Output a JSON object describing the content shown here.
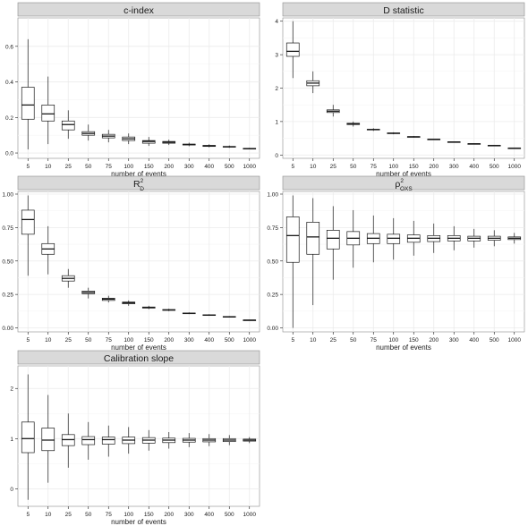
{
  "chart_data": [
    {
      "type": "boxplot",
      "title": "c-index",
      "xlabel": "number of events",
      "ylabel": "",
      "ylim": [
        -0.03,
        0.76
      ],
      "yticks": [
        "0.0",
        "0.2",
        "0.4",
        "0.6"
      ],
      "categories": [
        "5",
        "10",
        "25",
        "50",
        "75",
        "100",
        "150",
        "200",
        "300",
        "400",
        "500",
        "1000"
      ],
      "boxes": [
        {
          "min": 0.02,
          "q1": 0.19,
          "median": 0.27,
          "q3": 0.37,
          "max": 0.64
        },
        {
          "min": 0.05,
          "q1": 0.18,
          "median": 0.22,
          "q3": 0.27,
          "max": 0.43
        },
        {
          "min": 0.08,
          "q1": 0.13,
          "median": 0.16,
          "q3": 0.18,
          "max": 0.24
        },
        {
          "min": 0.07,
          "q1": 0.1,
          "median": 0.11,
          "q3": 0.12,
          "max": 0.16
        },
        {
          "min": 0.06,
          "q1": 0.085,
          "median": 0.095,
          "q3": 0.105,
          "max": 0.13
        },
        {
          "min": 0.05,
          "q1": 0.07,
          "median": 0.08,
          "q3": 0.09,
          "max": 0.11
        },
        {
          "min": 0.04,
          "q1": 0.055,
          "median": 0.065,
          "q3": 0.07,
          "max": 0.09
        },
        {
          "min": 0.045,
          "q1": 0.055,
          "median": 0.06,
          "q3": 0.065,
          "max": 0.075
        },
        {
          "min": 0.038,
          "q1": 0.045,
          "median": 0.048,
          "q3": 0.05,
          "max": 0.058
        },
        {
          "min": 0.032,
          "q1": 0.037,
          "median": 0.04,
          "q3": 0.043,
          "max": 0.049
        },
        {
          "min": 0.029,
          "q1": 0.033,
          "median": 0.035,
          "q3": 0.037,
          "max": 0.042
        },
        {
          "min": 0.021,
          "q1": 0.024,
          "median": 0.025,
          "q3": 0.026,
          "max": 0.029
        }
      ]
    },
    {
      "type": "boxplot",
      "title": "D statistic",
      "xlabel": "number of events",
      "ylabel": "",
      "ylim": [
        -0.1,
        4.1
      ],
      "yticks": [
        "0",
        "1",
        "2",
        "3",
        "4"
      ],
      "categories": [
        "5",
        "10",
        "25",
        "50",
        "75",
        "100",
        "150",
        "200",
        "300",
        "400",
        "500",
        "1000"
      ],
      "boxes": [
        {
          "min": 2.3,
          "q1": 2.95,
          "median": 3.1,
          "q3": 3.35,
          "max": 4.0
        },
        {
          "min": 1.85,
          "q1": 2.07,
          "median": 2.15,
          "q3": 2.22,
          "max": 2.5
        },
        {
          "min": 1.15,
          "q1": 1.27,
          "median": 1.31,
          "q3": 1.35,
          "max": 1.5
        },
        {
          "min": 0.85,
          "q1": 0.91,
          "median": 0.93,
          "q3": 0.95,
          "max": 1.0
        },
        {
          "min": 0.72,
          "q1": 0.75,
          "median": 0.76,
          "q3": 0.77,
          "max": 0.8
        },
        {
          "min": 0.62,
          "q1": 0.645,
          "median": 0.65,
          "q3": 0.66,
          "max": 0.68
        },
        {
          "min": 0.52,
          "q1": 0.54,
          "median": 0.545,
          "q3": 0.55,
          "max": 0.57
        },
        {
          "min": 0.45,
          "q1": 0.465,
          "median": 0.47,
          "q3": 0.475,
          "max": 0.49
        },
        {
          "min": 0.37,
          "q1": 0.385,
          "median": 0.39,
          "q3": 0.395,
          "max": 0.405
        },
        {
          "min": 0.32,
          "q1": 0.33,
          "median": 0.335,
          "q3": 0.34,
          "max": 0.35
        },
        {
          "min": 0.27,
          "q1": 0.28,
          "median": 0.285,
          "q3": 0.29,
          "max": 0.3
        },
        {
          "min": 0.19,
          "q1": 0.2,
          "median": 0.205,
          "q3": 0.21,
          "max": 0.22
        }
      ]
    },
    {
      "type": "boxplot",
      "title": "R",
      "title_sup": "2",
      "title_sub": "D",
      "xlabel": "number of events",
      "ylabel": "",
      "ylim": [
        -0.03,
        1.02
      ],
      "yticks": [
        "0.00",
        "0.25",
        "0.50",
        "0.75",
        "1.00"
      ],
      "categories": [
        "5",
        "10",
        "25",
        "50",
        "75",
        "100",
        "150",
        "200",
        "300",
        "400",
        "500",
        "1000"
      ],
      "boxes": [
        {
          "min": 0.39,
          "q1": 0.7,
          "median": 0.81,
          "q3": 0.88,
          "max": 0.99
        },
        {
          "min": 0.4,
          "q1": 0.55,
          "median": 0.59,
          "q3": 0.63,
          "max": 0.76
        },
        {
          "min": 0.3,
          "q1": 0.35,
          "median": 0.37,
          "q3": 0.39,
          "max": 0.44
        },
        {
          "min": 0.22,
          "q1": 0.255,
          "median": 0.265,
          "q3": 0.275,
          "max": 0.3
        },
        {
          "min": 0.19,
          "q1": 0.205,
          "median": 0.215,
          "q3": 0.222,
          "max": 0.24
        },
        {
          "min": 0.165,
          "q1": 0.18,
          "median": 0.187,
          "q3": 0.193,
          "max": 0.205
        },
        {
          "min": 0.14,
          "q1": 0.148,
          "median": 0.152,
          "q3": 0.156,
          "max": 0.165
        },
        {
          "min": 0.125,
          "q1": 0.131,
          "median": 0.134,
          "q3": 0.137,
          "max": 0.143
        },
        {
          "min": 0.103,
          "q1": 0.107,
          "median": 0.109,
          "q3": 0.111,
          "max": 0.116
        },
        {
          "min": 0.09,
          "q1": 0.094,
          "median": 0.096,
          "q3": 0.098,
          "max": 0.102
        },
        {
          "min": 0.078,
          "q1": 0.081,
          "median": 0.083,
          "q3": 0.085,
          "max": 0.088
        },
        {
          "min": 0.055,
          "q1": 0.057,
          "median": 0.058,
          "q3": 0.059,
          "max": 0.061
        }
      ]
    },
    {
      "type": "boxplot",
      "title": "ρ",
      "title_sup": "2",
      "title_sub": "OXS",
      "xlabel": "number of events",
      "ylabel": "",
      "ylim": [
        -0.03,
        1.02
      ],
      "yticks": [
        "0.00",
        "0.25",
        "0.50",
        "0.75",
        "1.00"
      ],
      "categories": [
        "5",
        "10",
        "25",
        "50",
        "75",
        "100",
        "150",
        "200",
        "300",
        "400",
        "500",
        "1000"
      ],
      "boxes": [
        {
          "min": 0.0,
          "q1": 0.49,
          "median": 0.69,
          "q3": 0.83,
          "max": 0.99
        },
        {
          "min": 0.17,
          "q1": 0.55,
          "median": 0.68,
          "q3": 0.79,
          "max": 0.97
        },
        {
          "min": 0.36,
          "q1": 0.59,
          "median": 0.67,
          "q3": 0.73,
          "max": 0.91
        },
        {
          "min": 0.45,
          "q1": 0.62,
          "median": 0.67,
          "q3": 0.72,
          "max": 0.88
        },
        {
          "min": 0.49,
          "q1": 0.63,
          "median": 0.67,
          "q3": 0.705,
          "max": 0.84
        },
        {
          "min": 0.51,
          "q1": 0.63,
          "median": 0.67,
          "q3": 0.7,
          "max": 0.82
        },
        {
          "min": 0.54,
          "q1": 0.64,
          "median": 0.67,
          "q3": 0.695,
          "max": 0.8
        },
        {
          "min": 0.56,
          "q1": 0.645,
          "median": 0.67,
          "q3": 0.69,
          "max": 0.78
        },
        {
          "min": 0.58,
          "q1": 0.65,
          "median": 0.67,
          "q3": 0.69,
          "max": 0.76
        },
        {
          "min": 0.6,
          "q1": 0.65,
          "median": 0.67,
          "q3": 0.685,
          "max": 0.74
        },
        {
          "min": 0.61,
          "q1": 0.655,
          "median": 0.67,
          "q3": 0.685,
          "max": 0.73
        },
        {
          "min": 0.63,
          "q1": 0.66,
          "median": 0.67,
          "q3": 0.68,
          "max": 0.71
        }
      ]
    },
    {
      "type": "boxplot",
      "title": "Calibration slope",
      "xlabel": "number of events",
      "ylabel": "",
      "ylim": [
        -0.35,
        2.45
      ],
      "yticks": [
        "0",
        "1",
        "2"
      ],
      "categories": [
        "5",
        "10",
        "25",
        "50",
        "75",
        "100",
        "150",
        "200",
        "300",
        "400",
        "500",
        "1000"
      ],
      "boxes": [
        {
          "min": -0.22,
          "q1": 0.72,
          "median": 1.0,
          "q3": 1.33,
          "max": 2.28
        },
        {
          "min": 0.12,
          "q1": 0.76,
          "median": 0.97,
          "q3": 1.21,
          "max": 1.87
        },
        {
          "min": 0.42,
          "q1": 0.86,
          "median": 0.98,
          "q3": 1.08,
          "max": 1.5
        },
        {
          "min": 0.58,
          "q1": 0.88,
          "median": 0.98,
          "q3": 1.04,
          "max": 1.33
        },
        {
          "min": 0.64,
          "q1": 0.89,
          "median": 0.98,
          "q3": 1.03,
          "max": 1.26
        },
        {
          "min": 0.7,
          "q1": 0.9,
          "median": 0.97,
          "q3": 1.03,
          "max": 1.23
        },
        {
          "min": 0.76,
          "q1": 0.91,
          "median": 0.97,
          "q3": 1.02,
          "max": 1.17
        },
        {
          "min": 0.8,
          "q1": 0.92,
          "median": 0.97,
          "q3": 1.01,
          "max": 1.13
        },
        {
          "min": 0.83,
          "q1": 0.93,
          "median": 0.97,
          "q3": 1.005,
          "max": 1.11
        },
        {
          "min": 0.85,
          "q1": 0.935,
          "median": 0.97,
          "q3": 1.0,
          "max": 1.09
        },
        {
          "min": 0.87,
          "q1": 0.94,
          "median": 0.97,
          "q3": 1.0,
          "max": 1.07
        },
        {
          "min": 0.91,
          "q1": 0.95,
          "median": 0.97,
          "q3": 0.99,
          "max": 1.03
        }
      ]
    }
  ],
  "colors": {
    "strip": "#d9d9d9",
    "panel_border": "#8c8c8c",
    "grid_major": "#ebebeb",
    "grid_minor": "#f5f5f5",
    "box_fill": "#ffffff",
    "box_stroke": "#1a1a1a",
    "text": "#1a1a1a"
  }
}
